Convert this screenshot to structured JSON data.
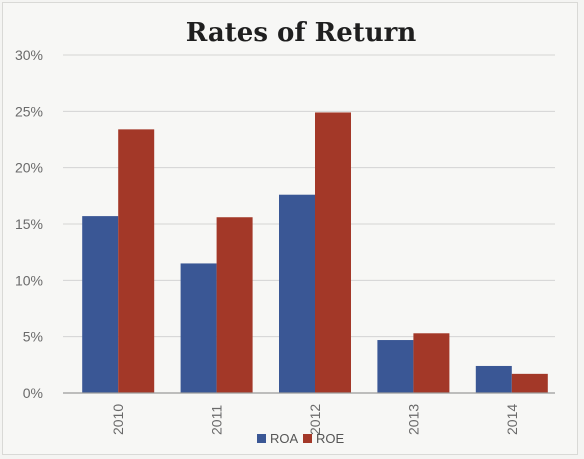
{
  "chart_data": {
    "type": "bar",
    "title": "Rates of Return",
    "categories": [
      "2010",
      "2011",
      "2012",
      "2013",
      "2014"
    ],
    "series": [
      {
        "name": "ROA",
        "color": "#3a5795",
        "values": [
          15.7,
          11.5,
          17.6,
          4.7,
          2.4
        ]
      },
      {
        "name": "ROE",
        "color": "#a33828",
        "values": [
          23.4,
          15.6,
          24.9,
          5.3,
          1.7
        ]
      }
    ],
    "ylim": [
      0,
      30
    ],
    "yticks": [
      0,
      5,
      10,
      15,
      20,
      25,
      30
    ],
    "ytick_labels": [
      "0%",
      "5%",
      "10%",
      "15%",
      "20%",
      "25%",
      "30%"
    ],
    "grid": true,
    "legend_position": "bottom"
  }
}
